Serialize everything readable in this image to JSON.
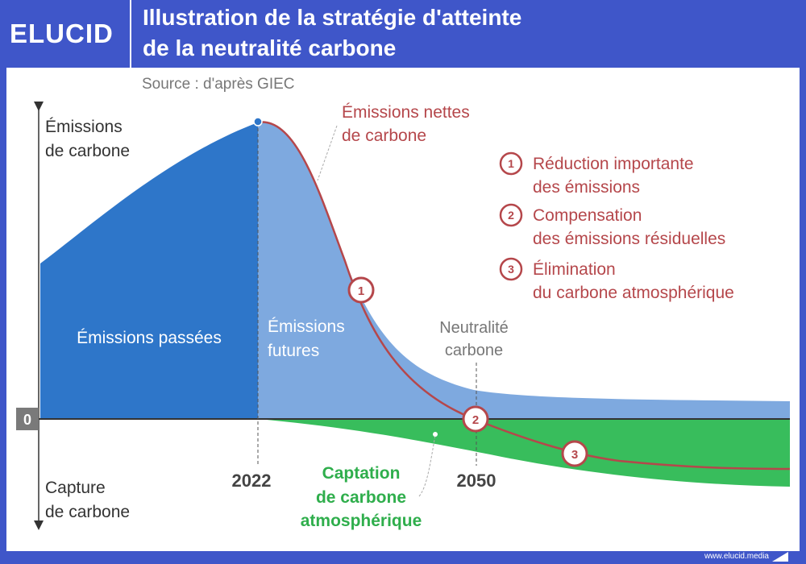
{
  "header": {
    "logo": "ELUCID",
    "title_line1": "Illustration de la stratégie d'atteinte",
    "title_line2": "de la neutralité carbone"
  },
  "source": "Source : d'après GIEC",
  "axis": {
    "top_label_1": "Émissions",
    "top_label_2": "de carbone",
    "bottom_label_1": "Capture",
    "bottom_label_2": "de carbone",
    "zero": "0"
  },
  "regions": {
    "past": "Émissions passées",
    "future_1": "Émissions",
    "future_2": "futures",
    "capture_1": "Captation",
    "capture_2": "de carbone",
    "capture_3": "atmosphérique"
  },
  "years": {
    "y2022": "2022",
    "y2050": "2050"
  },
  "net_emissions": {
    "line1": "Émissions nettes",
    "line2": "de carbone"
  },
  "neutrality": {
    "line1": "Neutralité",
    "line2": "carbone"
  },
  "legend": [
    {
      "num": "1",
      "line1": "Réduction importante",
      "line2": "des émissions"
    },
    {
      "num": "2",
      "line1": "Compensation",
      "line2": "des émissions résiduelles"
    },
    {
      "num": "3",
      "line1": "Élimination",
      "line2": "du carbone atmosphérique"
    }
  ],
  "markers": {
    "m1": "1",
    "m2": "2",
    "m3": "3"
  },
  "footer": {
    "url": "www.elucid.media"
  },
  "colors": {
    "header_bg": "#3f56c9",
    "past": "#2e76c9",
    "future": "#7ea9df",
    "capture": "#38bd5c",
    "net_line": "#b5474b",
    "annotation_red": "#b5474b",
    "capture_label": "#2fae4c",
    "gray_text": "#777777"
  }
}
